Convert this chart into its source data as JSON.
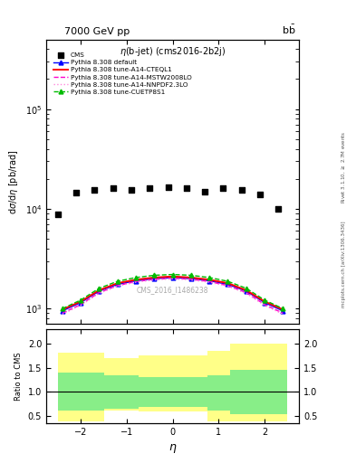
{
  "title_main": "7000 GeV pp",
  "title_right": "b$\\bar{\\text{b}}$",
  "plot_title": "$\\eta$(b-jet) (cms2016-2b2j)",
  "ylabel_main": "d$\\sigma$/d$\\eta$ [pb/rad]",
  "ylabel_ratio": "Ratio to CMS",
  "xlabel": "$\\eta$",
  "watermark": "CMS_2016_I1486238",
  "right_label_top": "Rivet 3.1.10, $\\geq$ 2.7M events",
  "right_label_bot": "mcplots.cern.ch [arXiv:1306.3436]",
  "cms_eta": [
    -2.5,
    -2.1,
    -1.7,
    -1.3,
    -0.9,
    -0.5,
    -0.1,
    0.3,
    0.7,
    1.1,
    1.5,
    1.9,
    2.3
  ],
  "cms_val": [
    8800,
    14500,
    15500,
    16000,
    15500,
    16000,
    16500,
    16000,
    15000,
    16000,
    15500,
    14000,
    10000
  ],
  "mc_eta": [
    -2.4,
    -2.0,
    -1.6,
    -1.2,
    -0.8,
    -0.4,
    0.0,
    0.4,
    0.8,
    1.2,
    1.6,
    2.0,
    2.4
  ],
  "default_val": [
    950,
    1150,
    1500,
    1750,
    1900,
    2000,
    2050,
    2000,
    1900,
    1750,
    1500,
    1150,
    950
  ],
  "cteql1_val": [
    980,
    1180,
    1530,
    1800,
    1950,
    2050,
    2100,
    2050,
    1950,
    1800,
    1530,
    1180,
    980
  ],
  "mstw_val": [
    900,
    1100,
    1450,
    1700,
    1870,
    1970,
    2020,
    1970,
    1870,
    1700,
    1450,
    1100,
    900
  ],
  "nnpdf_val": [
    880,
    1080,
    1420,
    1680,
    1840,
    1940,
    1990,
    1940,
    1840,
    1680,
    1420,
    1080,
    880
  ],
  "cuetp_val": [
    1000,
    1220,
    1600,
    1880,
    2050,
    2160,
    2200,
    2160,
    2050,
    1880,
    1600,
    1220,
    1000
  ],
  "ratio_eta_edges": [
    -2.5,
    -1.5,
    -0.75,
    0.75,
    1.25,
    2.5
  ],
  "ratio_green_lo": [
    0.62,
    0.65,
    0.7,
    0.62,
    0.55
  ],
  "ratio_green_hi": [
    1.4,
    1.35,
    1.3,
    1.35,
    1.45
  ],
  "ratio_yellow_lo": [
    0.4,
    0.62,
    0.6,
    0.4,
    0.4
  ],
  "ratio_yellow_hi": [
    1.8,
    1.7,
    1.75,
    1.85,
    2.0
  ],
  "color_default": "#0000ff",
  "color_cteql1": "#ff0000",
  "color_mstw": "#ff00cc",
  "color_nnpdf": "#ff88dd",
  "color_cuetp": "#00bb00",
  "ylim_main": [
    700,
    500000
  ],
  "ylim_ratio": [
    0.35,
    2.3
  ],
  "xlim": [
    -2.75,
    2.75
  ]
}
